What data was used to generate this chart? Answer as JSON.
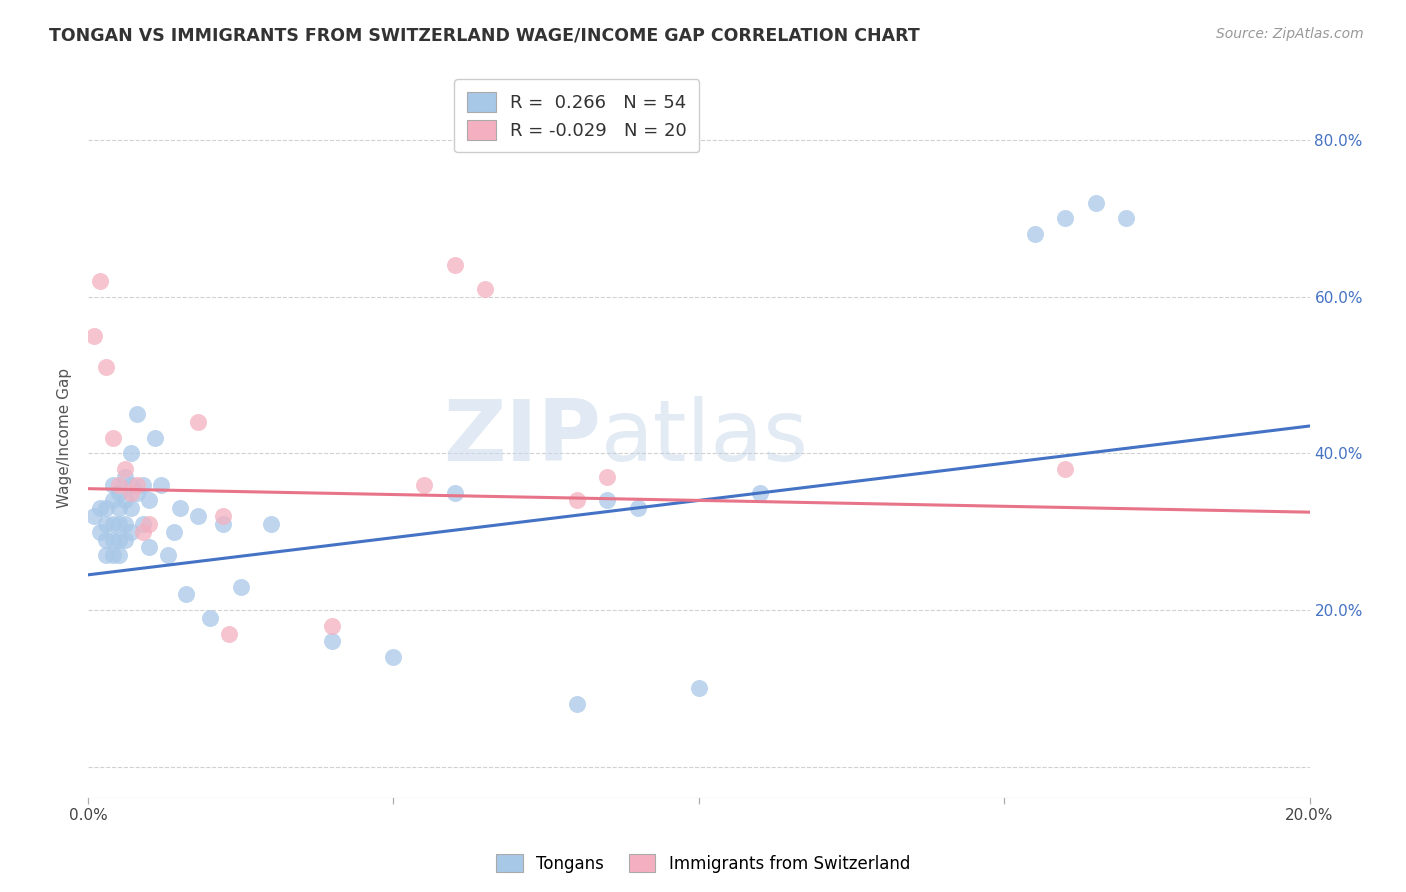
{
  "title": "TONGAN VS IMMIGRANTS FROM SWITZERLAND WAGE/INCOME GAP CORRELATION CHART",
  "source": "Source: ZipAtlas.com",
  "ylabel": "Wage/Income Gap",
  "xlim": [
    0.0,
    0.2
  ],
  "ylim": [
    -0.04,
    0.88
  ],
  "yticks": [
    0.0,
    0.2,
    0.4,
    0.6,
    0.8
  ],
  "right_ytick_labels": [
    "",
    "20.0%",
    "40.0%",
    "60.0%",
    "80.0%"
  ],
  "xticks": [
    0.0,
    0.05,
    0.1,
    0.15,
    0.2
  ],
  "xtick_labels": [
    "0.0%",
    "",
    "",
    "",
    "20.0%"
  ],
  "blue_color": "#a8c8e8",
  "pink_color": "#f4b0c0",
  "blue_line_color": "#4472c4",
  "pink_line_color": "#e8748a",
  "background_color": "#ffffff",
  "watermark_zip": "ZIP",
  "watermark_atlas": "atlas",
  "legend_r_blue": "0.266",
  "legend_n_blue": "54",
  "legend_r_pink": "-0.029",
  "legend_n_pink": "20",
  "blue_scatter_x": [
    0.001,
    0.002,
    0.002,
    0.003,
    0.003,
    0.003,
    0.003,
    0.004,
    0.004,
    0.004,
    0.004,
    0.004,
    0.005,
    0.005,
    0.005,
    0.005,
    0.005,
    0.006,
    0.006,
    0.006,
    0.006,
    0.007,
    0.007,
    0.007,
    0.007,
    0.008,
    0.008,
    0.009,
    0.009,
    0.01,
    0.01,
    0.011,
    0.012,
    0.013,
    0.014,
    0.015,
    0.016,
    0.018,
    0.02,
    0.022,
    0.025,
    0.03,
    0.04,
    0.05,
    0.06,
    0.08,
    0.085,
    0.09,
    0.1,
    0.11,
    0.155,
    0.16,
    0.165,
    0.17
  ],
  "blue_scatter_y": [
    0.32,
    0.3,
    0.33,
    0.27,
    0.29,
    0.31,
    0.33,
    0.27,
    0.29,
    0.31,
    0.34,
    0.36,
    0.27,
    0.29,
    0.31,
    0.33,
    0.35,
    0.29,
    0.31,
    0.34,
    0.37,
    0.3,
    0.33,
    0.36,
    0.4,
    0.35,
    0.45,
    0.31,
    0.36,
    0.28,
    0.34,
    0.42,
    0.36,
    0.27,
    0.3,
    0.33,
    0.22,
    0.32,
    0.19,
    0.31,
    0.23,
    0.31,
    0.16,
    0.14,
    0.35,
    0.08,
    0.34,
    0.33,
    0.1,
    0.35,
    0.68,
    0.7,
    0.72,
    0.7
  ],
  "pink_scatter_x": [
    0.001,
    0.002,
    0.003,
    0.004,
    0.005,
    0.006,
    0.007,
    0.008,
    0.009,
    0.01,
    0.018,
    0.022,
    0.023,
    0.04,
    0.055,
    0.06,
    0.065,
    0.08,
    0.085,
    0.16
  ],
  "pink_scatter_y": [
    0.55,
    0.62,
    0.51,
    0.42,
    0.36,
    0.38,
    0.35,
    0.36,
    0.3,
    0.31,
    0.44,
    0.32,
    0.17,
    0.18,
    0.36,
    0.64,
    0.61,
    0.34,
    0.37,
    0.38
  ],
  "blue_trend_x": [
    0.0,
    0.2
  ],
  "blue_trend_y": [
    0.245,
    0.435
  ],
  "pink_trend_x": [
    0.0,
    0.2
  ],
  "pink_trend_y": [
    0.355,
    0.325
  ]
}
